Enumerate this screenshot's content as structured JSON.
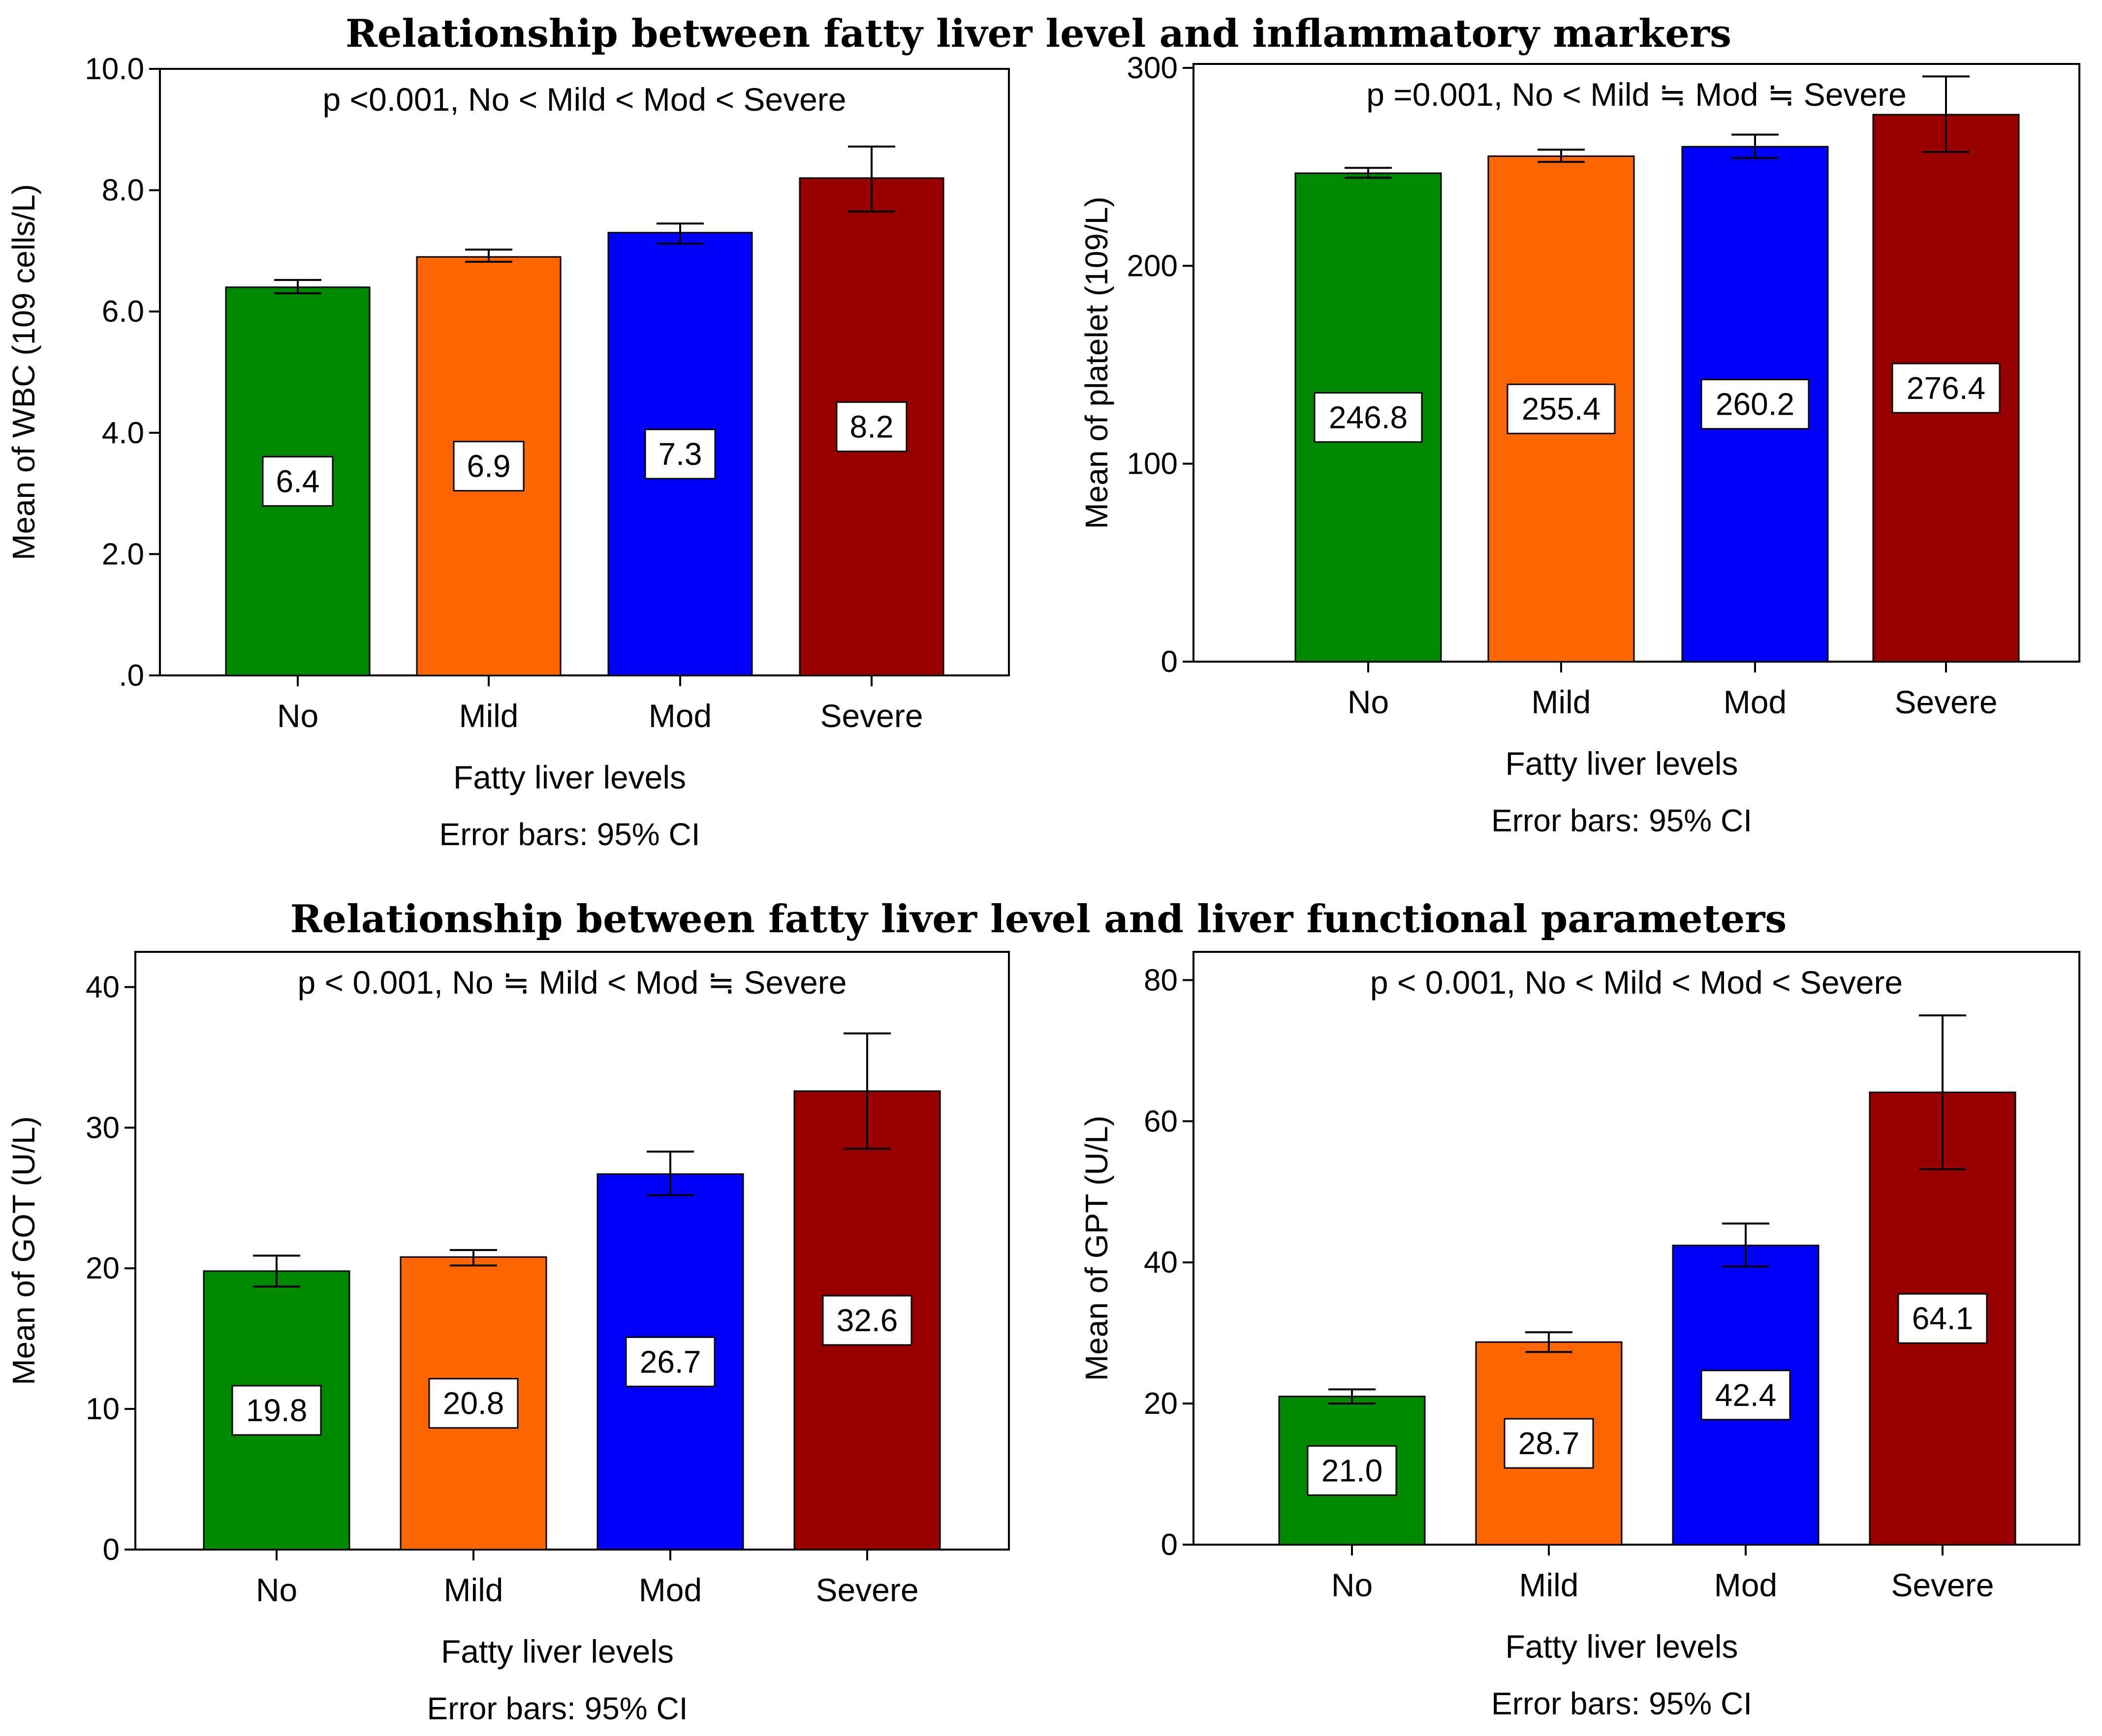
{
  "sections": [
    {
      "title": "Relationship between fatty liver level and inflammatory markers"
    },
    {
      "title": "Relationship between fatty liver level and liver functional parameters"
    }
  ],
  "colors": {
    "No": "#008800",
    "Mild": "#ff6600",
    "Mod": "#0000ff",
    "Severe": "#990000"
  },
  "chart_data": [
    {
      "type": "bar",
      "annotation": "p <0.001, No < Mild < Mod < Severe",
      "ylabel": "Mean of WBC (109 cells/L)",
      "xlabel": "Fatty liver levels",
      "note": "Error bars: 95% CI",
      "categories": [
        "No",
        "Mild",
        "Mod",
        "Severe"
      ],
      "values": [
        6.4,
        6.9,
        7.3,
        8.2
      ],
      "value_labels": [
        "6.4",
        "6.9",
        "7.3",
        "8.2"
      ],
      "ci_low": [
        6.3,
        6.82,
        7.12,
        7.65
      ],
      "ci_high": [
        6.52,
        7.02,
        7.45,
        8.72
      ],
      "ylim": [
        0,
        10
      ],
      "yticks": [
        0,
        2,
        4,
        6,
        8,
        10
      ],
      "ytick_labels": [
        ".0",
        "2.0",
        "4.0",
        "6.0",
        "8.0",
        "10.0"
      ]
    },
    {
      "type": "bar",
      "annotation": "p =0.001, No < Mild ≒ Mod ≒ Severe",
      "ylabel": "Mean of platelet (109/L)",
      "xlabel": "Fatty liver levels",
      "note": "Error bars: 95% CI",
      "categories": [
        "No",
        "Mild",
        "Mod",
        "Severe"
      ],
      "values": [
        246.8,
        255.4,
        260.2,
        276.4
      ],
      "value_labels": [
        "246.8",
        "255.4",
        "260.2",
        "276.4"
      ],
      "ci_low": [
        244.5,
        252.5,
        254.5,
        257.5
      ],
      "ci_high": [
        249.5,
        258.7,
        266.3,
        295.7
      ],
      "ylim": [
        0,
        302
      ],
      "yticks": [
        0,
        100,
        200,
        300
      ],
      "ytick_labels": [
        "0",
        "100",
        "200",
        "300"
      ]
    },
    {
      "type": "bar",
      "annotation": "p < 0.001, No ≒ Mild < Mod ≒ Severe",
      "ylabel": "Mean of GOT (U/L)",
      "xlabel": "Fatty liver levels",
      "note": "Error bars: 95% CI",
      "categories": [
        "No",
        "Mild",
        "Mod",
        "Severe"
      ],
      "values": [
        19.8,
        20.8,
        26.7,
        32.6
      ],
      "value_labels": [
        "19.8",
        "20.8",
        "26.7",
        "32.6"
      ],
      "ci_low": [
        18.7,
        20.2,
        25.2,
        28.5
      ],
      "ci_high": [
        20.9,
        21.3,
        28.3,
        36.7
      ],
      "ylim": [
        0,
        42.5
      ],
      "yticks": [
        0,
        10,
        20,
        30,
        40
      ],
      "ytick_labels": [
        "0",
        "10",
        "20",
        "30",
        "40"
      ]
    },
    {
      "type": "bar",
      "annotation": "p < 0.001, No < Mild < Mod < Severe",
      "ylabel": "Mean of GPT (U/L)",
      "xlabel": "Fatty liver levels",
      "note": "Error bars: 95% CI",
      "categories": [
        "No",
        "Mild",
        "Mod",
        "Severe"
      ],
      "values": [
        21.0,
        28.7,
        42.4,
        64.1
      ],
      "value_labels": [
        "21.0",
        "28.7",
        "42.4",
        "64.1"
      ],
      "ci_low": [
        20.0,
        27.3,
        39.4,
        53.2
      ],
      "ci_high": [
        22.0,
        30.1,
        45.5,
        75.0
      ],
      "ylim": [
        0,
        84
      ],
      "yticks": [
        0,
        20,
        40,
        60,
        80
      ],
      "ytick_labels": [
        "0",
        "20",
        "40",
        "60",
        "80"
      ]
    }
  ]
}
